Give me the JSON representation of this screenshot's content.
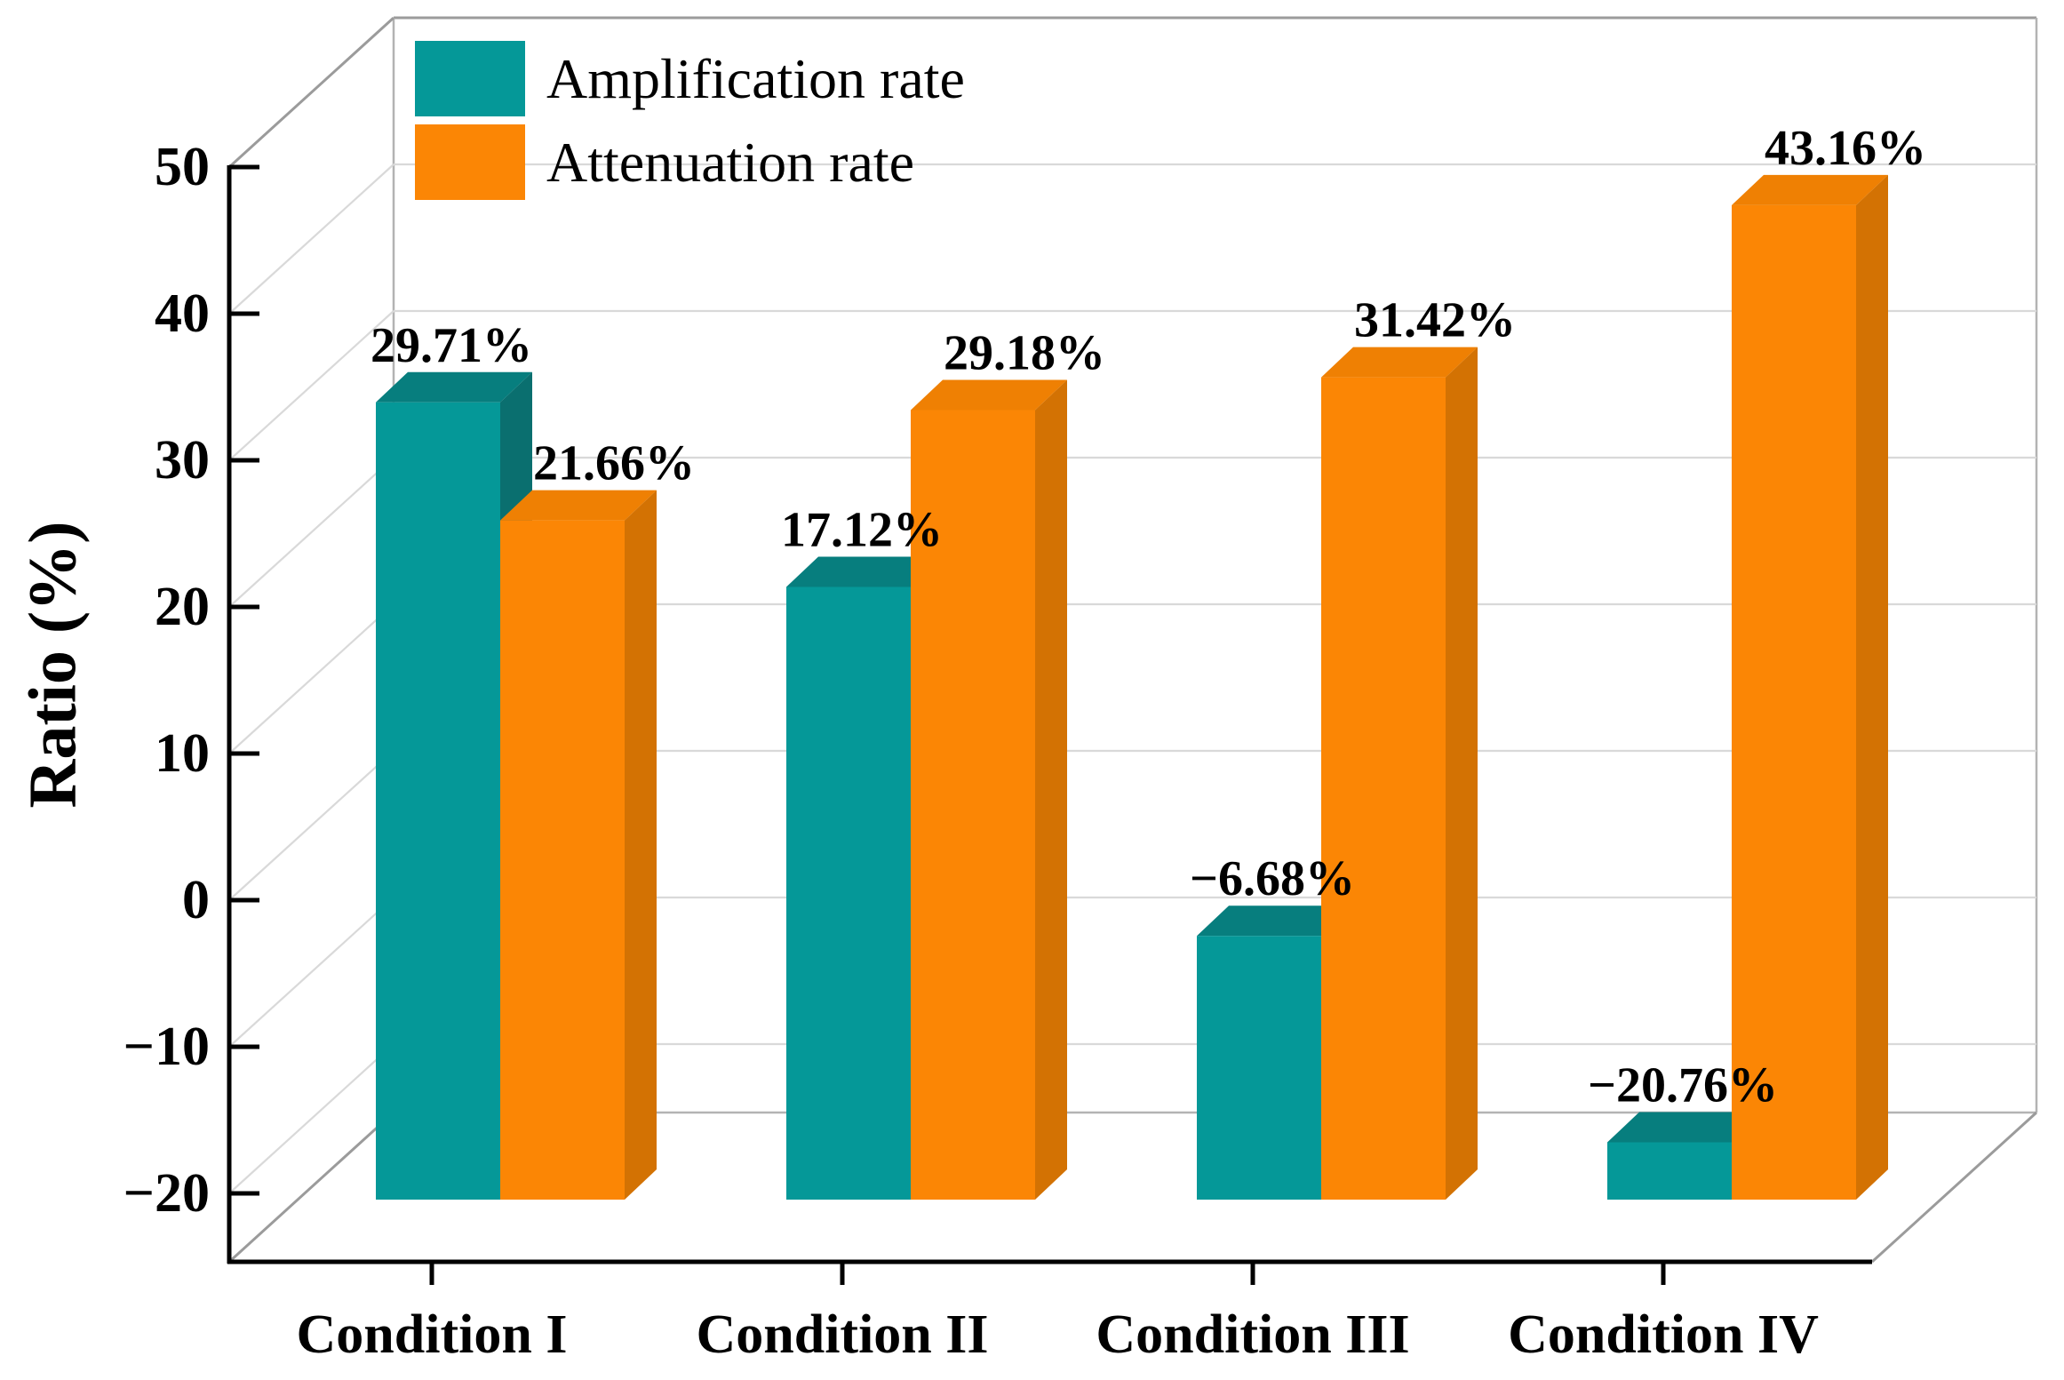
{
  "chart_data": {
    "type": "bar",
    "projection": "3d",
    "title": "",
    "xlabel": "",
    "ylabel": "Ratio (%)",
    "categories": [
      "Condition I",
      "Condition II",
      "Condition III",
      "Condition IV"
    ],
    "series": [
      {
        "name": "Amplification rate",
        "values": [
          29.71,
          17.12,
          -6.68,
          -20.76
        ],
        "value_labels": [
          "29.71%",
          "17.12%",
          "−6.68%",
          "−20.76%"
        ],
        "color_front": "#059898",
        "color_top": "#077E7E",
        "color_side": "#0A6F6F"
      },
      {
        "name": "Attenuation rate",
        "values": [
          21.66,
          29.18,
          31.42,
          43.16
        ],
        "value_labels": [
          "21.66%",
          "29.18%",
          "31.42%",
          "43.16%"
        ],
        "color_front": "#FB8605",
        "color_top": "#EF8003",
        "color_side": "#D37203"
      }
    ],
    "yticks": [
      50,
      40,
      30,
      20,
      10,
      0,
      -10,
      -20
    ],
    "ytick_labels": [
      "50",
      "40",
      "30",
      "20",
      "10",
      "0",
      "−10",
      "−20"
    ],
    "ylim": [
      -25,
      50
    ],
    "grid": true,
    "grid_color": "#D9D9D9",
    "frame_color": "#B3B3B3",
    "edge_color": "#9B9B9B",
    "axis_color": "#000000",
    "background": "#FFFFFF",
    "legend_position": "top-left"
  }
}
